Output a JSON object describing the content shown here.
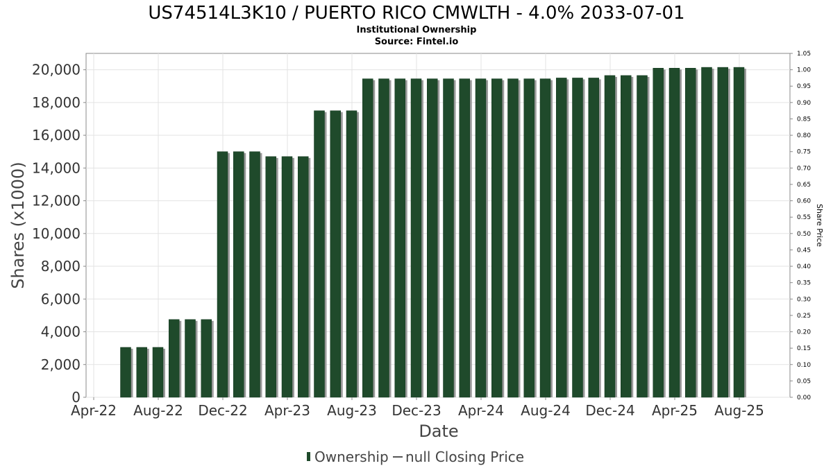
{
  "chart_data": {
    "type": "bar",
    "title": "US74514L3K10 / PUERTO RICO CMWLTH - 4.0% 2033-07-01",
    "subtitle_lines": [
      "Institutional Ownership",
      "Source: Fintel.io"
    ],
    "xlabel": "Date",
    "ylabel": "Shares (x1000)",
    "y2label": "Share Price",
    "ylim": [
      0,
      21000
    ],
    "y_ticks": [
      "0",
      "2,000",
      "4,000",
      "6,000",
      "8,000",
      "10,000",
      "12,000",
      "14,000",
      "16,000",
      "18,000",
      "20,000"
    ],
    "y2lim": [
      0,
      1.05
    ],
    "y2_ticks": [
      "0.00",
      "0.05",
      "0.10",
      "0.15",
      "0.20",
      "0.25",
      "0.30",
      "0.35",
      "0.40",
      "0.45",
      "0.50",
      "0.55",
      "0.60",
      "0.65",
      "0.70",
      "0.75",
      "0.80",
      "0.85",
      "0.90",
      "0.95",
      "1.00",
      "1.05"
    ],
    "x_ticks": [
      "Apr-22",
      "Aug-22",
      "Dec-22",
      "Apr-23",
      "Aug-23",
      "Dec-23",
      "Apr-24",
      "Aug-24",
      "Dec-24",
      "Apr-25",
      "Aug-25"
    ],
    "grid": true,
    "legend_position": "bottom",
    "series": [
      {
        "name": "Ownership",
        "color": "#1f4a2b",
        "values": [
          3050,
          3050,
          3050,
          4750,
          4750,
          4750,
          15000,
          15000,
          15000,
          14700,
          14700,
          14700,
          17500,
          17500,
          17500,
          19450,
          19450,
          19450,
          19450,
          19450,
          19450,
          19450,
          19450,
          19450,
          19450,
          19450,
          19450,
          19500,
          19500,
          19500,
          19650,
          19650,
          19650,
          20100,
          20100,
          20100,
          20150,
          20150,
          20150
        ]
      }
    ],
    "legend": [
      {
        "label": "Ownership",
        "kind": "bar",
        "color": "#1f4a2b"
      },
      {
        "label": "null Closing Price",
        "kind": "line",
        "color": "#555555"
      }
    ]
  }
}
